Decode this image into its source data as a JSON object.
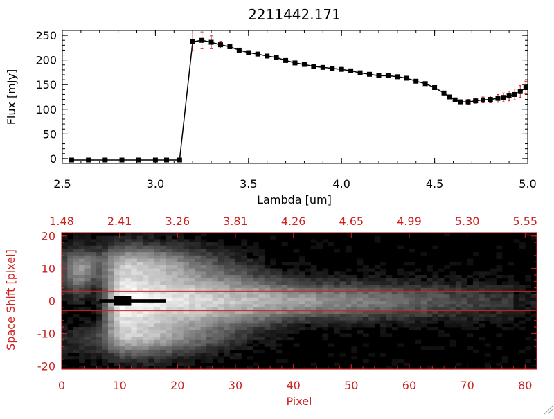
{
  "chart_data": [
    {
      "type": "line",
      "title": "2211442.171",
      "xlabel": "Lambda [um]",
      "ylabel": "Flux [mJy]",
      "xlim": [
        2.5,
        5.0
      ],
      "ylim": [
        -10,
        260
      ],
      "xticks": [
        "2.5",
        "3.0",
        "3.5",
        "4.0",
        "4.5",
        "5.0"
      ],
      "yticks": [
        "0",
        "50",
        "100",
        "150",
        "200",
        "250"
      ],
      "colors": {
        "line": "#000000",
        "marker": "#000000",
        "error": "#cc2222"
      },
      "series": [
        {
          "x": [
            2.55,
            2.64,
            2.73,
            2.82,
            2.91,
            3.0,
            3.06,
            3.13,
            3.2,
            3.25,
            3.3,
            3.35,
            3.4,
            3.45,
            3.5,
            3.55,
            3.6,
            3.65,
            3.7,
            3.75,
            3.8,
            3.85,
            3.9,
            3.95,
            4.0,
            4.05,
            4.1,
            4.15,
            4.2,
            4.25,
            4.3,
            4.35,
            4.4,
            4.45,
            4.5,
            4.55,
            4.58,
            4.61,
            4.64,
            4.68,
            4.72,
            4.76,
            4.8,
            4.84,
            4.87,
            4.9,
            4.93,
            4.96,
            4.99
          ],
          "y": [
            -3,
            -3,
            -3,
            -3,
            -3,
            -3,
            -3,
            -3,
            237,
            240,
            236,
            231,
            227,
            220,
            215,
            212,
            208,
            205,
            199,
            194,
            191,
            187,
            185,
            183,
            181,
            178,
            174,
            171,
            168,
            168,
            166,
            163,
            157,
            152,
            144,
            133,
            125,
            119,
            115,
            115,
            117,
            119,
            120,
            122,
            124,
            127,
            130,
            136,
            144
          ],
          "yerr": [
            0,
            0,
            0,
            0,
            0,
            0,
            0,
            0,
            18,
            17,
            13,
            7,
            4,
            3,
            3,
            3,
            3,
            3,
            3,
            3,
            3,
            3,
            3,
            3,
            3,
            3,
            3,
            3,
            3,
            3,
            3,
            3,
            3,
            3,
            3,
            3,
            4,
            4,
            4,
            5,
            5,
            6,
            7,
            8,
            9,
            10,
            11,
            12,
            13
          ]
        }
      ]
    },
    {
      "type": "heatmap",
      "xlabel": "Pixel",
      "ylabel": "Space Shift [pixel]",
      "xlim": [
        0,
        82
      ],
      "ylim": [
        -21,
        21
      ],
      "xticks": [
        "0",
        "10",
        "20",
        "30",
        "40",
        "50",
        "60",
        "70",
        "80"
      ],
      "yticks": [
        "-20",
        "-10",
        "0",
        "10",
        "20"
      ],
      "top_axis_ticks": [
        "1.48",
        "2.41",
        "3.26",
        "3.81",
        "4.26",
        "4.65",
        "4.99",
        "5.30",
        "5.55"
      ],
      "extraction_aperture": [
        -3,
        3
      ],
      "colors": {
        "axes": "#cc2222",
        "aperture": "#cc2222"
      }
    }
  ]
}
